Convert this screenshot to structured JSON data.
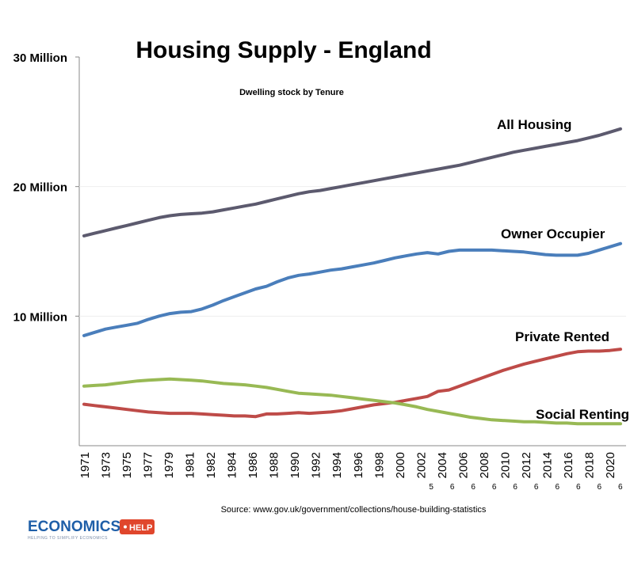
{
  "chart_data": {
    "type": "line",
    "title": "Housing Supply - England",
    "subtitle": "Dwelling stock by Tenure",
    "ylim": [
      0,
      30
    ],
    "yticks": [
      {
        "value": 10,
        "label": "10  Million"
      },
      {
        "value": 20,
        "label": "20  Million"
      },
      {
        "value": 30,
        "label": "30  Million"
      }
    ],
    "x_tick_labels": [
      {
        "label": "1971",
        "suffix": ""
      },
      {
        "label": "1973",
        "suffix": ""
      },
      {
        "label": "1975",
        "suffix": ""
      },
      {
        "label": "1977",
        "suffix": ""
      },
      {
        "label": "1979",
        "suffix": ""
      },
      {
        "label": "1981",
        "suffix": ""
      },
      {
        "label": "1982",
        "suffix": ""
      },
      {
        "label": "1984",
        "suffix": ""
      },
      {
        "label": "1986",
        "suffix": ""
      },
      {
        "label": "1988",
        "suffix": ""
      },
      {
        "label": "1990",
        "suffix": ""
      },
      {
        "label": "1992",
        "suffix": ""
      },
      {
        "label": "1994",
        "suffix": ""
      },
      {
        "label": "1996",
        "suffix": ""
      },
      {
        "label": "1998",
        "suffix": ""
      },
      {
        "label": "2000",
        "suffix": ""
      },
      {
        "label": "2002",
        "suffix": "5"
      },
      {
        "label": "2004",
        "suffix": "6"
      },
      {
        "label": "2006",
        "suffix": "6"
      },
      {
        "label": "2008",
        "suffix": "6"
      },
      {
        "label": "2010",
        "suffix": "6"
      },
      {
        "label": "2012",
        "suffix": "6"
      },
      {
        "label": "2014",
        "suffix": "6"
      },
      {
        "label": "2016",
        "suffix": "6"
      },
      {
        "label": "2018",
        "suffix": "6"
      },
      {
        "label": "2020",
        "suffix": "6"
      }
    ],
    "x_points": 51,
    "series": [
      {
        "name": "All Housing",
        "color": "#5c5a6e",
        "values": [
          16.2,
          16.4,
          16.6,
          16.8,
          17.0,
          17.2,
          17.4,
          17.6,
          17.75,
          17.85,
          17.9,
          17.95,
          18.05,
          18.2,
          18.35,
          18.5,
          18.65,
          18.85,
          19.05,
          19.25,
          19.45,
          19.6,
          19.7,
          19.85,
          20.0,
          20.15,
          20.3,
          20.45,
          20.6,
          20.75,
          20.9,
          21.05,
          21.2,
          21.35,
          21.5,
          21.65,
          21.85,
          22.05,
          22.25,
          22.45,
          22.65,
          22.8,
          22.95,
          23.1,
          23.25,
          23.4,
          23.55,
          23.75,
          23.95,
          24.2,
          24.45
        ]
      },
      {
        "name": "Owner Occupier",
        "color": "#4a7ebb",
        "values": [
          8.5,
          8.75,
          9.0,
          9.15,
          9.3,
          9.45,
          9.75,
          10.0,
          10.2,
          10.3,
          10.35,
          10.55,
          10.85,
          11.2,
          11.5,
          11.8,
          12.1,
          12.3,
          12.65,
          12.95,
          13.15,
          13.25,
          13.4,
          13.55,
          13.65,
          13.8,
          13.95,
          14.1,
          14.3,
          14.5,
          14.65,
          14.8,
          14.9,
          14.8,
          15.0,
          15.1,
          15.1,
          15.1,
          15.1,
          15.05,
          15.0,
          14.95,
          14.85,
          14.75,
          14.7,
          14.7,
          14.7,
          14.85,
          15.1,
          15.35,
          15.6
        ]
      },
      {
        "name": "Private Rented",
        "color": "#be4b48",
        "values": [
          3.2,
          3.1,
          3.0,
          2.9,
          2.8,
          2.7,
          2.6,
          2.55,
          2.5,
          2.5,
          2.5,
          2.45,
          2.4,
          2.35,
          2.3,
          2.3,
          2.25,
          2.45,
          2.45,
          2.5,
          2.55,
          2.5,
          2.55,
          2.6,
          2.7,
          2.85,
          3.0,
          3.15,
          3.25,
          3.35,
          3.5,
          3.65,
          3.8,
          4.2,
          4.3,
          4.6,
          4.9,
          5.2,
          5.5,
          5.8,
          6.05,
          6.3,
          6.5,
          6.7,
          6.9,
          7.1,
          7.25,
          7.3,
          7.3,
          7.35,
          7.45
        ]
      },
      {
        "name": "Social Renting",
        "color": "#98b954",
        "values": [
          4.6,
          4.65,
          4.7,
          4.8,
          4.9,
          5.0,
          5.05,
          5.1,
          5.15,
          5.1,
          5.05,
          5.0,
          4.9,
          4.8,
          4.75,
          4.7,
          4.6,
          4.5,
          4.35,
          4.2,
          4.05,
          4.0,
          3.95,
          3.9,
          3.8,
          3.7,
          3.6,
          3.5,
          3.4,
          3.3,
          3.15,
          3.0,
          2.8,
          2.65,
          2.5,
          2.35,
          2.2,
          2.1,
          2.0,
          1.95,
          1.9,
          1.85,
          1.85,
          1.8,
          1.75,
          1.75,
          1.7,
          1.7,
          1.7,
          1.7,
          1.7
        ]
      }
    ]
  },
  "labels": {
    "all_housing": "All Housing",
    "owner_occupier": "Owner Occupier",
    "private_rented": "Private Rented",
    "social_renting": "Social Renting"
  },
  "source": "Source: www.gov.uk/government/collections/house-building-statistics",
  "logo": {
    "word": "ECONOMICS",
    "badge": "HELP",
    "tagline": "HELPING TO SIMPLIFY ECONOMICS",
    "word_color": "#1f5fa8",
    "badge_color": "#e0462c"
  }
}
